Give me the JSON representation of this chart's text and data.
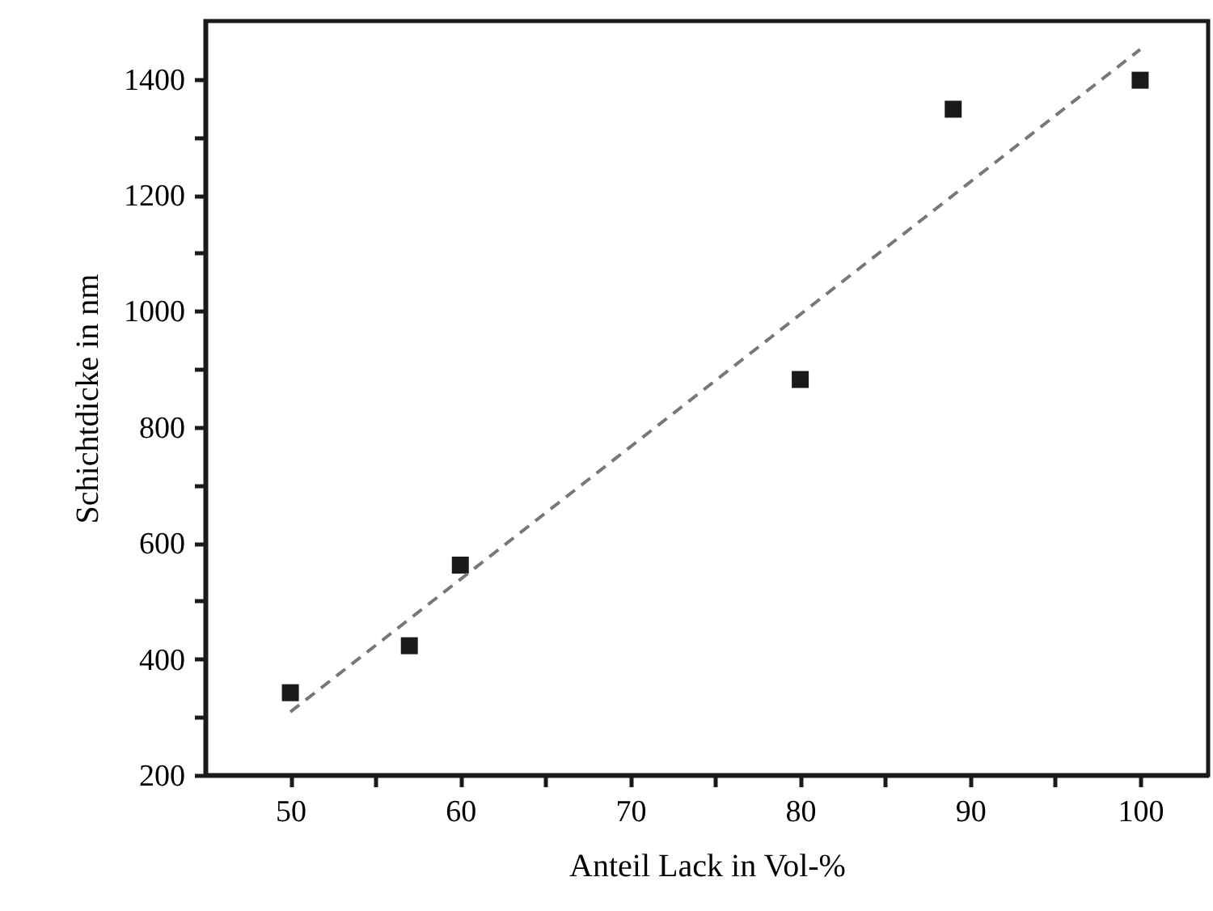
{
  "chart_data": {
    "type": "scatter",
    "xlabel": "Anteil Lack in Vol-%",
    "ylabel": "Schichtdicke in nm",
    "xlim": [
      45,
      104
    ],
    "ylim": [
      200,
      1500
    ],
    "xticks": [
      50,
      {
        "value": 55,
        "label": null
      },
      60,
      {
        "value": 65,
        "label": null
      },
      70,
      {
        "value": 75,
        "label": null
      },
      80,
      {
        "value": 85,
        "label": null
      },
      90,
      {
        "value": 95,
        "label": null
      },
      100
    ],
    "yticks": [
      200,
      {
        "value": 300,
        "label": null
      },
      400,
      {
        "value": 500,
        "label": null
      },
      600,
      {
        "value": 700,
        "label": null
      },
      800,
      {
        "value": 900,
        "label": null
      },
      1000,
      {
        "value": 1100,
        "label": null
      },
      1200,
      {
        "value": 1300,
        "label": null
      },
      1400
    ],
    "marker": "square",
    "grid": false,
    "series": [
      {
        "color": "#1a1a1a",
        "x": [
          50,
          57,
          60,
          80,
          89,
          100
        ],
        "values": [
          342,
          423,
          562,
          882,
          1348,
          1398
        ]
      },
      {
        "type": "line",
        "color": "#777777",
        "line_style": "dashed",
        "marker": "none",
        "x": [
          50,
          100
        ],
        "values": [
          309,
          1451
        ]
      }
    ]
  }
}
